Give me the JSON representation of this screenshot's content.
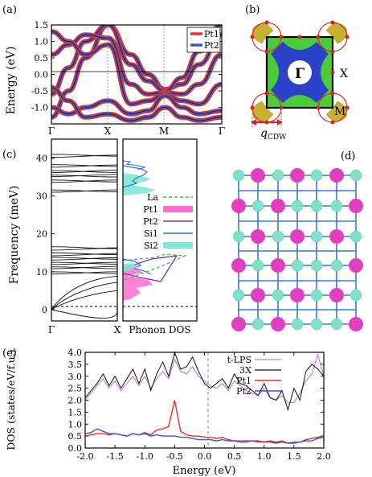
{
  "panels": {
    "a": {
      "label": "(a)"
    },
    "b": {
      "label": "(b)",
      "gamma": "Γ",
      "x": "X",
      "m": "M",
      "q_main": "q",
      "q_sub": "CDW"
    },
    "c": {
      "label": "(c)"
    },
    "d": {
      "label": "(d)"
    },
    "e": {
      "label": "(e)"
    }
  },
  "colors": {
    "pt1": "#e8302a",
    "pt2": "#3a55c8",
    "la": "#3cc13c",
    "pt1_fill": "#ff6fd0",
    "pt2_line": "#7a2fb0",
    "si1": "#3a6fd8",
    "si2_fill": "#7fe8d6",
    "tlps": "#c07ad0",
    "x3": "#111111",
    "atom_pt": "#e040c0",
    "atom_si": "#80e0c8"
  },
  "chart_data": [
    {
      "type": "line",
      "id": "a",
      "ylabel": "Energy (eV)",
      "ylim": [
        -1.5,
        1.5
      ],
      "yticks": [
        "1.5",
        "1.0",
        "0.5",
        "0.0",
        "-0.5",
        "-1.0"
      ],
      "ytick_values": [
        1.5,
        1.0,
        0.5,
        0.0,
        -0.5,
        -1.0
      ],
      "xticks": [
        "Γ",
        "X",
        "M",
        "Γ"
      ],
      "xtick_positions": [
        0,
        1,
        2,
        3
      ],
      "legend": [
        "Pt1",
        "Pt2"
      ],
      "series": [
        {
          "x": [
            0,
            0.3,
            0.6,
            1.0,
            1.4,
            1.7,
            2.0,
            2.3,
            2.6,
            3.0
          ],
          "values": [
            -1.3,
            -0.5,
            0.5,
            1.5,
            0.6,
            0.0,
            -0.45,
            -0.3,
            0.3,
            1.2
          ]
        },
        {
          "x": [
            0,
            0.3,
            0.6,
            1.0,
            1.4,
            1.7,
            2.0,
            2.3,
            2.6,
            3.0
          ],
          "values": [
            -0.6,
            0.2,
            1.0,
            1.5,
            0.3,
            -0.2,
            -0.5,
            -0.1,
            0.7,
            1.5
          ]
        },
        {
          "x": [
            0,
            0.3,
            0.6,
            1.0,
            1.4,
            1.7,
            2.0,
            2.3,
            2.6,
            3.0
          ],
          "values": [
            0.6,
            0.9,
            1.2,
            1.1,
            -0.3,
            -0.6,
            -0.55,
            -0.6,
            -0.3,
            0.6
          ]
        },
        {
          "x": [
            0,
            0.3,
            0.6,
            1.0,
            1.4,
            1.7,
            2.0,
            2.3,
            2.6,
            3.0
          ],
          "values": [
            1.3,
            1.0,
            0.6,
            0.9,
            -0.9,
            -0.8,
            -0.6,
            -0.8,
            -0.9,
            -0.3
          ]
        },
        {
          "x": [
            0,
            0.3,
            0.6,
            1.0,
            1.4,
            1.7,
            2.0,
            2.3,
            2.6,
            3.0
          ],
          "values": [
            -1.0,
            -1.2,
            -1.0,
            -0.8,
            -1.2,
            -1.1,
            -0.65,
            -1.0,
            -1.2,
            -1.1
          ]
        },
        {
          "x": [
            0,
            0.3,
            0.6,
            1.0,
            1.4,
            1.7,
            2.0,
            2.3,
            2.6,
            3.0
          ],
          "values": [
            -0.4,
            -0.8,
            -1.3,
            -1.2,
            -1.4,
            -1.3,
            -1.0,
            -1.3,
            -1.4,
            -1.3
          ]
        }
      ]
    },
    {
      "type": "line",
      "id": "c",
      "ylabel": "Frequency (meV)",
      "ylim": [
        -3,
        45
      ],
      "yticks": [
        "40",
        "30",
        "20",
        "10",
        "0"
      ],
      "ytick_values": [
        40,
        30,
        20,
        10,
        0
      ],
      "xticks": [
        "Γ",
        "X"
      ],
      "high_bands": [
        41,
        40.2,
        38.3,
        37.6,
        36.7,
        36.2,
        35.5,
        35.1,
        34.2,
        33.6,
        31.6,
        31.0
      ],
      "mid_bands": [
        16.6,
        15.7,
        15.0,
        14.2,
        13.8,
        13.1,
        12.5,
        11.9,
        11.3,
        10.8,
        10.0,
        9.4
      ]
    },
    {
      "type": "area",
      "id": "c-dos",
      "xlabel": "Phonon DOS",
      "legend": [
        "La",
        "Pt1",
        "Pt2",
        "Si1",
        "Si2"
      ]
    },
    {
      "type": "line",
      "id": "e",
      "xlabel": "Energy (eV)",
      "ylabel": "DOS (states/eV/f.u.)",
      "xlim": [
        -2.0,
        2.0
      ],
      "ylim": [
        0.0,
        4.0
      ],
      "xticks": [
        "-2.0",
        "-1.5",
        "-1.0",
        "-0.5",
        "0.0",
        "0.5",
        "1.0",
        "1.5",
        "2.0"
      ],
      "xtick_values": [
        -2.0,
        -1.5,
        -1.0,
        -0.5,
        0.0,
        0.5,
        1.0,
        1.5,
        2.0
      ],
      "yticks": [
        "0.0",
        "0.5",
        "1.0",
        "1.5",
        "2.0",
        "2.5",
        "3.0",
        "3.5",
        "4.0"
      ],
      "ytick_values": [
        0.0,
        0.5,
        1.0,
        1.5,
        2.0,
        2.5,
        3.0,
        3.5,
        4.0
      ],
      "legend": [
        "t-LPS",
        "3X",
        "Pt1",
        "Pt2"
      ],
      "x": [
        -2.0,
        -1.9,
        -1.8,
        -1.7,
        -1.6,
        -1.5,
        -1.4,
        -1.3,
        -1.2,
        -1.1,
        -1.0,
        -0.9,
        -0.8,
        -0.7,
        -0.6,
        -0.5,
        -0.4,
        -0.3,
        -0.2,
        -0.1,
        0.0,
        0.1,
        0.2,
        0.3,
        0.4,
        0.5,
        0.6,
        0.7,
        0.8,
        0.9,
        1.0,
        1.1,
        1.2,
        1.3,
        1.4,
        1.5,
        1.6,
        1.7,
        1.8,
        1.9,
        2.0
      ],
      "series": [
        {
          "name": "t-LPS",
          "values": [
            2.0,
            2.3,
            2.6,
            2.9,
            2.5,
            2.8,
            2.4,
            2.7,
            3.0,
            2.6,
            3.0,
            2.5,
            2.9,
            3.2,
            2.9,
            3.7,
            3.2,
            3.1,
            3.4,
            3.0,
            2.8,
            2.6,
            2.5,
            2.7,
            2.4,
            2.8,
            2.6,
            2.4,
            2.3,
            2.2,
            2.5,
            2.1,
            2.0,
            2.2,
            1.9,
            1.9,
            2.3,
            2.8,
            3.1,
            3.9,
            3.0
          ]
        },
        {
          "name": "3X",
          "values": [
            2.1,
            2.4,
            2.7,
            3.1,
            2.6,
            3.0,
            2.5,
            2.9,
            3.3,
            2.7,
            3.3,
            2.4,
            3.1,
            3.6,
            3.0,
            4.0,
            3.3,
            3.4,
            3.8,
            3.2,
            2.7,
            2.5,
            2.7,
            2.9,
            2.5,
            3.1,
            2.7,
            2.6,
            2.4,
            2.2,
            2.7,
            2.1,
            2.0,
            2.4,
            1.6,
            2.5,
            2.0,
            3.2,
            3.5,
            3.3,
            3.0
          ]
        },
        {
          "name": "Pt1",
          "values": [
            0.5,
            0.55,
            0.6,
            0.6,
            0.55,
            0.6,
            0.55,
            0.5,
            0.6,
            0.55,
            0.65,
            0.55,
            0.75,
            0.8,
            0.9,
            2.0,
            0.7,
            0.55,
            0.5,
            0.5,
            0.45,
            0.45,
            0.4,
            0.45,
            0.35,
            0.3,
            0.3,
            0.3,
            0.3,
            0.3,
            0.25,
            0.3,
            0.25,
            0.3,
            0.2,
            0.2,
            0.25,
            0.3,
            0.3,
            0.4,
            0.45
          ]
        },
        {
          "name": "Pt2",
          "values": [
            0.6,
            0.65,
            0.8,
            0.7,
            0.6,
            0.6,
            0.55,
            0.5,
            0.6,
            0.55,
            0.6,
            0.5,
            0.55,
            0.5,
            0.5,
            0.5,
            0.45,
            0.45,
            0.4,
            0.35,
            0.35,
            0.35,
            0.3,
            0.35,
            0.3,
            0.3,
            0.25,
            0.25,
            0.3,
            0.25,
            0.25,
            0.25,
            0.2,
            0.25,
            0.2,
            0.25,
            0.25,
            0.35,
            0.4,
            0.45,
            0.5
          ]
        }
      ]
    }
  ]
}
